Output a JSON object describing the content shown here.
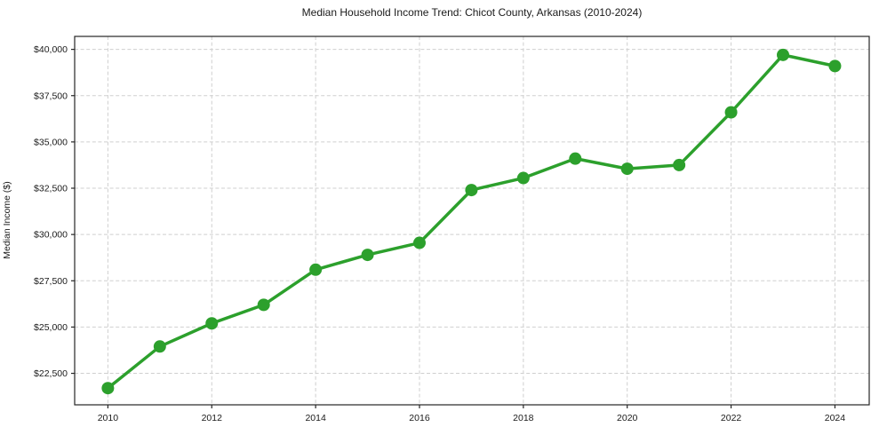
{
  "chart_data": {
    "type": "line",
    "title": "Median Household Income Trend: Chicot County, Arkansas (2010-2024)",
    "xlabel": "",
    "ylabel": "Median Income ($)",
    "x": [
      2010,
      2011,
      2012,
      2013,
      2014,
      2015,
      2016,
      2017,
      2018,
      2019,
      2020,
      2021,
      2022,
      2023,
      2024
    ],
    "series": [
      {
        "name": "Median Household Income",
        "values": [
          21700,
          23950,
          25200,
          26200,
          28100,
          28900,
          29550,
          32400,
          33050,
          34100,
          33550,
          33750,
          36600,
          39700,
          39100
        ]
      }
    ],
    "xtick_values": [
      2010,
      2012,
      2014,
      2016,
      2018,
      2020,
      2022,
      2024
    ],
    "xtick_labels": [
      "2010",
      "2012",
      "2014",
      "2016",
      "2018",
      "2020",
      "2022",
      "2024"
    ],
    "ytick_values": [
      22500,
      25000,
      27500,
      30000,
      32500,
      35000,
      37500,
      40000
    ],
    "ytick_labels": [
      "$22,500",
      "$25,000",
      "$27,500",
      "$30,000",
      "$32,500",
      "$35,000",
      "$37,500",
      "$40,000"
    ],
    "xlim": [
      2009.36,
      2024.66
    ],
    "ylim": [
      20800,
      40700
    ],
    "grid": "dashed, both axes, at major ticks",
    "legend_position": "none",
    "colors": {
      "line": "#2ca02c",
      "marker": "#2ca02c",
      "grid": "#cfcfcf",
      "spine": "#262626",
      "text": "#1a1a1a",
      "background": "#ffffff"
    },
    "marker_style": "circle",
    "line_width": 3.5,
    "marker_radius": 7
  }
}
